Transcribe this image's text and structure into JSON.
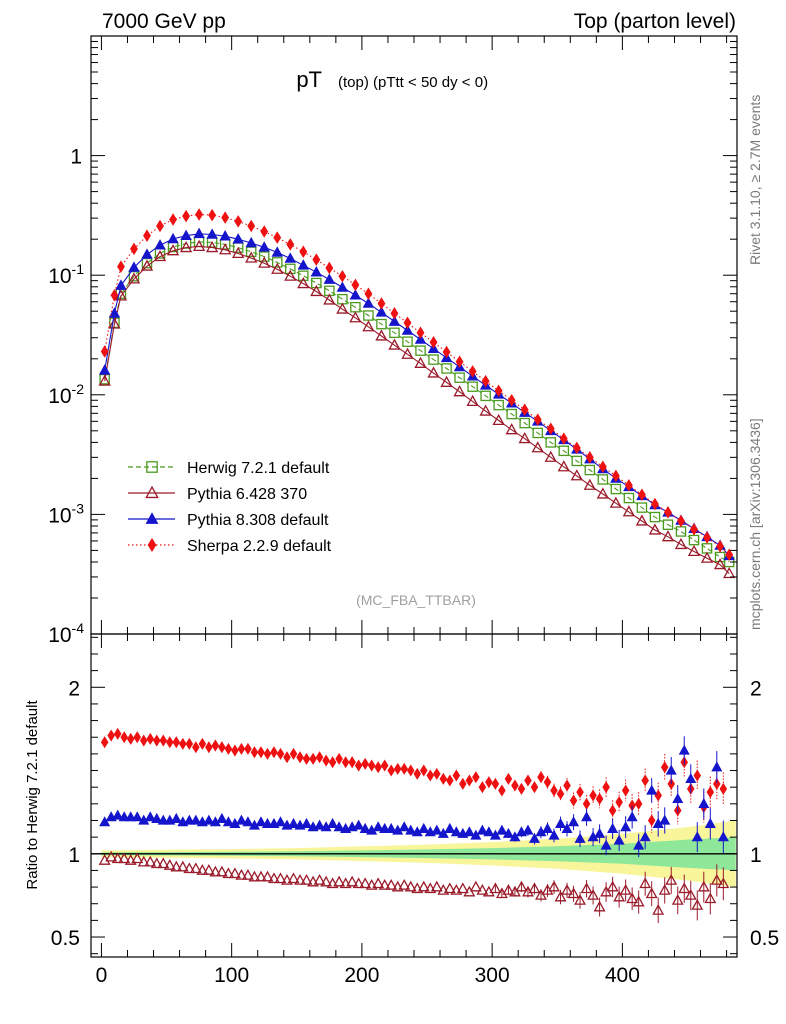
{
  "header": {
    "left": "7000 GeV pp",
    "right": "Top (parton level)"
  },
  "side_text": {
    "rivet": "Rivet 3.1.10, ≥ 2.7M events",
    "mcplots": "mcplots.cern.ch [arXiv:1306.3436]"
  },
  "chart_data": [
    {
      "type": "scatter",
      "panel": "main",
      "title_main": "pT",
      "title_sub": "(top)  (pTtt < 50 dy < 0)",
      "watermark": "(MC_FBA_TTBAR)",
      "y_scale": "log",
      "xlim": [
        -8,
        488
      ],
      "ylim": [
        0.0001,
        10
      ],
      "grid": false,
      "legend_position": "lower-left",
      "y_ticks": [
        {
          "label": "10",
          "sup": "-4",
          "value": 0.0001
        },
        {
          "label": "10",
          "sup": "-3",
          "value": 0.001
        },
        {
          "label": "10",
          "sup": "-2",
          "value": 0.01
        },
        {
          "label": "10",
          "sup": "-1",
          "value": 0.1
        },
        {
          "label": "1",
          "sup": "",
          "value": 1
        }
      ],
      "x": [
        2.5,
        10,
        15,
        25,
        35,
        45,
        55,
        65,
        75,
        85,
        95,
        105,
        115,
        125,
        135,
        145,
        155,
        165,
        175,
        185,
        195,
        205,
        215,
        225,
        235,
        245,
        255,
        265,
        275,
        285,
        295,
        305,
        315,
        325,
        335,
        345,
        355,
        365,
        375,
        385,
        395,
        405,
        415,
        425,
        435,
        445,
        455,
        465,
        475,
        482
      ],
      "series": [
        {
          "name": "Herwig 7.2.1 default",
          "color": "#4a9a1e",
          "marker": "open-square",
          "line": "dashed",
          "values": [
            0.0135,
            0.04,
            0.07,
            0.098,
            0.126,
            0.152,
            0.172,
            0.184,
            0.19,
            0.188,
            0.181,
            0.17,
            0.157,
            0.143,
            0.128,
            0.113,
            0.099,
            0.086,
            0.074,
            0.063,
            0.054,
            0.046,
            0.039,
            0.033,
            0.0278,
            0.0234,
            0.0197,
            0.0166,
            0.0139,
            0.0117,
            0.0098,
            0.0082,
            0.0069,
            0.0058,
            0.0048,
            0.004,
            0.0034,
            0.0028,
            0.00235,
            0.00196,
            0.00163,
            0.00137,
            0.00114,
            0.00095,
            0.00082,
            0.00072,
            0.00061,
            0.00052,
            0.00044,
            0.0004
          ]
        },
        {
          "name": "Pythia 6.428 370",
          "color": "#9a1a2a",
          "marker": "open-triangle",
          "line": "solid",
          "values": [
            0.013,
            0.039,
            0.067,
            0.093,
            0.119,
            0.143,
            0.16,
            0.17,
            0.174,
            0.17,
            0.163,
            0.152,
            0.139,
            0.126,
            0.112,
            0.098,
            0.085,
            0.073,
            0.062,
            0.052,
            0.044,
            0.037,
            0.031,
            0.026,
            0.0218,
            0.0183,
            0.0152,
            0.0127,
            0.0106,
            0.0088,
            0.0073,
            0.0061,
            0.0051,
            0.0043,
            0.0036,
            0.003,
            0.0025,
            0.0021,
            0.00175,
            0.00148,
            0.00124,
            0.00105,
            0.00088,
            0.00074,
            0.00065,
            0.00056,
            0.00049,
            0.00043,
            0.00038,
            0.00032
          ]
        },
        {
          "name": "Pythia 8.308 default",
          "color": "#1515cc",
          "marker": "filled-triangle",
          "line": "solid",
          "values": [
            0.016,
            0.048,
            0.082,
            0.116,
            0.149,
            0.178,
            0.201,
            0.214,
            0.222,
            0.219,
            0.212,
            0.2,
            0.186,
            0.171,
            0.155,
            0.138,
            0.121,
            0.106,
            0.092,
            0.079,
            0.068,
            0.058,
            0.049,
            0.041,
            0.0345,
            0.029,
            0.0243,
            0.0204,
            0.0171,
            0.0143,
            0.012,
            0.0101,
            0.0085,
            0.0071,
            0.006,
            0.005,
            0.0042,
            0.0035,
            0.0029,
            0.0024,
            0.002,
            0.0017,
            0.00143,
            0.0012,
            0.00104,
            0.00089,
            0.00076,
            0.00065,
            0.00055,
            0.00045
          ]
        },
        {
          "name": "Sherpa 2.2.9 default",
          "color": "#ee1111",
          "marker": "filled-diamond",
          "line": "dotted",
          "values": [
            0.023,
            0.068,
            0.118,
            0.166,
            0.214,
            0.258,
            0.292,
            0.312,
            0.322,
            0.318,
            0.303,
            0.282,
            0.258,
            0.232,
            0.206,
            0.181,
            0.157,
            0.135,
            0.115,
            0.098,
            0.083,
            0.07,
            0.058,
            0.048,
            0.04,
            0.033,
            0.0275,
            0.0228,
            0.0189,
            0.0157,
            0.013,
            0.0108,
            0.009,
            0.0075,
            0.0062,
            0.0052,
            0.0043,
            0.0036,
            0.003,
            0.0025,
            0.0021,
            0.00175,
            0.00146,
            0.00122,
            0.00104,
            0.00088,
            0.00075,
            0.00064,
            0.00054,
            0.00046
          ]
        }
      ]
    },
    {
      "type": "scatter",
      "panel": "ratio",
      "ylabel": "Ratio to Herwig 7.2.1 default",
      "xlim": [
        -8,
        488
      ],
      "ylim": [
        0.38,
        2.32
      ],
      "grid": false,
      "x_ticks": [
        0,
        100,
        200,
        300,
        400
      ],
      "y_ticks": [
        {
          "label": "0.5",
          "value": 0.5
        },
        {
          "label": "1",
          "value": 1
        },
        {
          "label": "2",
          "value": 2
        }
      ],
      "band": {
        "x": [
          0,
          50,
          100,
          150,
          200,
          250,
          300,
          350,
          400,
          450,
          487
        ],
        "inner_halfwidth": [
          0.008,
          0.01,
          0.012,
          0.015,
          0.02,
          0.026,
          0.034,
          0.045,
          0.06,
          0.085,
          0.1
        ],
        "outer_halfwidth": [
          0.02,
          0.024,
          0.028,
          0.034,
          0.044,
          0.055,
          0.07,
          0.09,
          0.12,
          0.16,
          0.2
        ],
        "inner_color": "#8fe89a",
        "outer_color": "#f8f59a"
      },
      "reference_line": 1,
      "series": [
        {
          "name": "Sherpa 2.2.9 default",
          "color": "#ee1111",
          "marker": "filled-diamond",
          "x": [
            2.5,
            7.5,
            12.5,
            17.5,
            22.5,
            27.5,
            32.5,
            37.5,
            42.5,
            47.5,
            52.5,
            57.5,
            62.5,
            67.5,
            72.5,
            77.5,
            82.5,
            87.5,
            92.5,
            97.5,
            102.5,
            107.5,
            112.5,
            117.5,
            122.5,
            127.5,
            132.5,
            137.5,
            142.5,
            147.5,
            152.5,
            157.5,
            162.5,
            167.5,
            172.5,
            177.5,
            182.5,
            187.5,
            192.5,
            197.5,
            202.5,
            207.5,
            212.5,
            217.5,
            222.5,
            227.5,
            232.5,
            237.5,
            242.5,
            247.5,
            252.5,
            257.5,
            262.5,
            267.5,
            272.5,
            277.5,
            282.5,
            287.5,
            292.5,
            297.5,
            302.5,
            307.5,
            312.5,
            317.5,
            322.5,
            327.5,
            332.5,
            337.5,
            342.5,
            347.5,
            352.5,
            357.5,
            362.5,
            367.5,
            372.5,
            377.5,
            382.5,
            387.5,
            392.5,
            397.5,
            402.5,
            407.5,
            412.5,
            417.5,
            422.5,
            427.5,
            432.5,
            437.5,
            442.5,
            447.5,
            452.5,
            457.5,
            462.5,
            467.5,
            472.5,
            477.5
          ],
          "values": [
            1.67,
            1.71,
            1.72,
            1.7,
            1.69,
            1.7,
            1.68,
            1.69,
            1.68,
            1.68,
            1.67,
            1.67,
            1.66,
            1.66,
            1.64,
            1.66,
            1.64,
            1.65,
            1.64,
            1.63,
            1.62,
            1.63,
            1.63,
            1.61,
            1.61,
            1.6,
            1.61,
            1.6,
            1.58,
            1.6,
            1.58,
            1.57,
            1.57,
            1.58,
            1.56,
            1.55,
            1.57,
            1.55,
            1.55,
            1.53,
            1.54,
            1.53,
            1.52,
            1.53,
            1.5,
            1.51,
            1.51,
            1.5,
            1.48,
            1.5,
            1.47,
            1.48,
            1.45,
            1.44,
            1.47,
            1.42,
            1.44,
            1.46,
            1.4,
            1.43,
            1.42,
            1.38,
            1.45,
            1.41,
            1.39,
            1.44,
            1.4,
            1.46,
            1.43,
            1.38,
            1.36,
            1.41,
            1.32,
            1.37,
            1.3,
            1.35,
            1.33,
            1.4,
            1.26,
            1.31,
            1.38,
            1.29,
            1.3,
            1.44,
            1.2,
            1.35,
            1.52,
            1.42,
            1.26,
            1.55,
            1.39,
            1.47,
            1.28,
            1.37,
            1.42,
            1.39
          ]
        },
        {
          "name": "Pythia 8.308 default",
          "color": "#1515cc",
          "marker": "filled-triangle",
          "x": [
            2.5,
            7.5,
            12.5,
            17.5,
            22.5,
            27.5,
            32.5,
            37.5,
            42.5,
            47.5,
            52.5,
            57.5,
            62.5,
            67.5,
            72.5,
            77.5,
            82.5,
            87.5,
            92.5,
            97.5,
            102.5,
            107.5,
            112.5,
            117.5,
            122.5,
            127.5,
            132.5,
            137.5,
            142.5,
            147.5,
            152.5,
            157.5,
            162.5,
            167.5,
            172.5,
            177.5,
            182.5,
            187.5,
            192.5,
            197.5,
            202.5,
            207.5,
            212.5,
            217.5,
            222.5,
            227.5,
            232.5,
            237.5,
            242.5,
            247.5,
            252.5,
            257.5,
            262.5,
            267.5,
            272.5,
            277.5,
            282.5,
            287.5,
            292.5,
            297.5,
            302.5,
            307.5,
            312.5,
            317.5,
            322.5,
            327.5,
            332.5,
            337.5,
            342.5,
            347.5,
            352.5,
            357.5,
            362.5,
            367.5,
            372.5,
            377.5,
            382.5,
            387.5,
            392.5,
            397.5,
            402.5,
            407.5,
            412.5,
            417.5,
            422.5,
            427.5,
            432.5,
            437.5,
            442.5,
            447.5,
            452.5,
            457.5,
            462.5,
            467.5,
            472.5,
            477.5
          ],
          "values": [
            1.19,
            1.22,
            1.23,
            1.22,
            1.22,
            1.22,
            1.2,
            1.22,
            1.21,
            1.2,
            1.2,
            1.21,
            1.19,
            1.2,
            1.2,
            1.19,
            1.2,
            1.19,
            1.21,
            1.19,
            1.18,
            1.2,
            1.19,
            1.17,
            1.19,
            1.18,
            1.18,
            1.19,
            1.17,
            1.18,
            1.17,
            1.18,
            1.16,
            1.17,
            1.16,
            1.18,
            1.16,
            1.15,
            1.16,
            1.17,
            1.15,
            1.14,
            1.16,
            1.15,
            1.15,
            1.14,
            1.16,
            1.14,
            1.13,
            1.15,
            1.13,
            1.14,
            1.12,
            1.15,
            1.13,
            1.12,
            1.13,
            1.11,
            1.14,
            1.13,
            1.11,
            1.14,
            1.12,
            1.1,
            1.13,
            1.14,
            1.09,
            1.13,
            1.15,
            1.11,
            1.18,
            1.15,
            1.19,
            1.09,
            1.22,
            1.1,
            1.12,
            1.05,
            1.15,
            1.08,
            1.16,
            1.22,
            1.05,
            1.1,
            1.38,
            1.18,
            1.2,
            1.5,
            1.33,
            1.62,
            1.45,
            1.1,
            1.3,
            1.18,
            1.52,
            1.1
          ]
        },
        {
          "name": "Pythia 6.428 370",
          "color": "#9a1a2a",
          "marker": "open-triangle",
          "x": [
            2.5,
            7.5,
            12.5,
            17.5,
            22.5,
            27.5,
            32.5,
            37.5,
            42.5,
            47.5,
            52.5,
            57.5,
            62.5,
            67.5,
            72.5,
            77.5,
            82.5,
            87.5,
            92.5,
            97.5,
            102.5,
            107.5,
            112.5,
            117.5,
            122.5,
            127.5,
            132.5,
            137.5,
            142.5,
            147.5,
            152.5,
            157.5,
            162.5,
            167.5,
            172.5,
            177.5,
            182.5,
            187.5,
            192.5,
            197.5,
            202.5,
            207.5,
            212.5,
            217.5,
            222.5,
            227.5,
            232.5,
            237.5,
            242.5,
            247.5,
            252.5,
            257.5,
            262.5,
            267.5,
            272.5,
            277.5,
            282.5,
            287.5,
            292.5,
            297.5,
            302.5,
            307.5,
            312.5,
            317.5,
            322.5,
            327.5,
            332.5,
            337.5,
            342.5,
            347.5,
            352.5,
            357.5,
            362.5,
            367.5,
            372.5,
            377.5,
            382.5,
            387.5,
            392.5,
            397.5,
            402.5,
            407.5,
            412.5,
            417.5,
            422.5,
            427.5,
            432.5,
            437.5,
            442.5,
            447.5,
            452.5,
            457.5,
            462.5,
            467.5,
            472.5,
            477.5
          ],
          "values": [
            0.96,
            0.98,
            0.97,
            0.97,
            0.96,
            0.97,
            0.95,
            0.95,
            0.94,
            0.94,
            0.93,
            0.92,
            0.92,
            0.91,
            0.91,
            0.9,
            0.9,
            0.89,
            0.89,
            0.88,
            0.88,
            0.87,
            0.87,
            0.86,
            0.86,
            0.86,
            0.85,
            0.85,
            0.84,
            0.85,
            0.84,
            0.84,
            0.83,
            0.84,
            0.83,
            0.82,
            0.83,
            0.82,
            0.83,
            0.82,
            0.82,
            0.81,
            0.82,
            0.81,
            0.81,
            0.8,
            0.81,
            0.8,
            0.79,
            0.8,
            0.79,
            0.8,
            0.78,
            0.79,
            0.78,
            0.79,
            0.77,
            0.8,
            0.78,
            0.77,
            0.79,
            0.76,
            0.78,
            0.77,
            0.8,
            0.77,
            0.79,
            0.75,
            0.78,
            0.8,
            0.74,
            0.78,
            0.76,
            0.72,
            0.79,
            0.75,
            0.68,
            0.77,
            0.8,
            0.74,
            0.78,
            0.73,
            0.71,
            0.82,
            0.76,
            0.66,
            0.78,
            0.84,
            0.72,
            0.79,
            0.75,
            0.69,
            0.8,
            0.73,
            0.84,
            0.82
          ]
        }
      ]
    }
  ]
}
